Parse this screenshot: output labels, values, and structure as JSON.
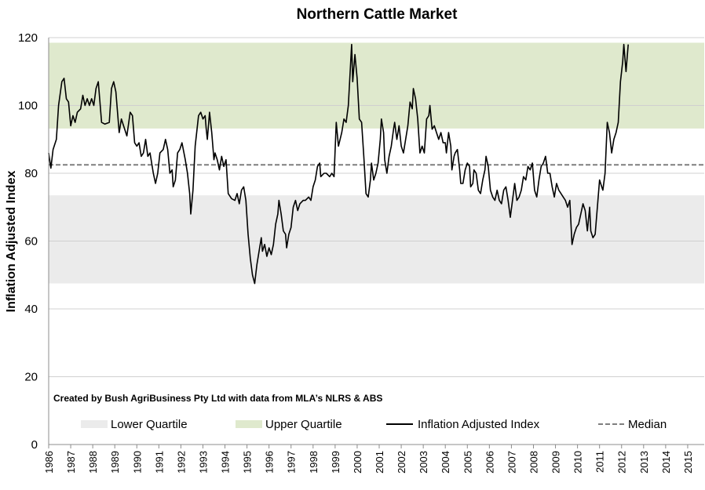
{
  "chart_data": {
    "type": "line",
    "title": "Northern Cattle Market",
    "ylabel": "Inflation Adjusted Index",
    "xlabel": "",
    "ylim": [
      0,
      120
    ],
    "yticks": [
      0,
      20,
      40,
      60,
      80,
      100,
      120
    ],
    "xlim": [
      1986,
      2015.75
    ],
    "xticks": [
      "1986",
      "1987",
      "1988",
      "1989",
      "1990",
      "1991",
      "1992",
      "1993",
      "1994",
      "1995",
      "1996",
      "1997",
      "1998",
      "1999",
      "2000",
      "2001",
      "2002",
      "2003",
      "2004",
      "2005",
      "2006",
      "2007",
      "2008",
      "2009",
      "2010",
      "2011",
      "2012",
      "2013",
      "2014",
      "2015"
    ],
    "grid": "horizontal",
    "legend_position": "bottom",
    "annotation": "Created by Bush AgriBusiness Pty Ltd with data from MLA’s NLRS & ABS",
    "bands": [
      {
        "name": "Lower Quartile",
        "range": [
          47.5,
          73.5
        ],
        "color": "#ebebeb"
      },
      {
        "name": "Upper Quartile",
        "range": [
          93.2,
          118.5
        ],
        "color": "#dfe9cd"
      }
    ],
    "median": {
      "name": "Median",
      "value": 82.5,
      "color": "#7f7f7f"
    },
    "series": [
      {
        "name": "Inflation Adjusted Index",
        "color": "#000000",
        "points": [
          [
            1986.0,
            86
          ],
          [
            1986.1,
            81.5
          ],
          [
            1986.2,
            87
          ],
          [
            1986.35,
            90
          ],
          [
            1986.45,
            100
          ],
          [
            1986.6,
            107
          ],
          [
            1986.7,
            108
          ],
          [
            1986.8,
            102
          ],
          [
            1986.9,
            101
          ],
          [
            1987.0,
            94
          ],
          [
            1987.1,
            97
          ],
          [
            1987.2,
            95
          ],
          [
            1987.3,
            98
          ],
          [
            1987.45,
            99
          ],
          [
            1987.55,
            103
          ],
          [
            1987.65,
            100
          ],
          [
            1987.75,
            102
          ],
          [
            1987.85,
            100
          ],
          [
            1987.95,
            102
          ],
          [
            1988.05,
            100
          ],
          [
            1988.15,
            105
          ],
          [
            1988.25,
            107
          ],
          [
            1988.4,
            95
          ],
          [
            1988.55,
            94.5
          ],
          [
            1988.75,
            95
          ],
          [
            1988.85,
            105
          ],
          [
            1988.95,
            107
          ],
          [
            1989.05,
            104
          ],
          [
            1989.2,
            92
          ],
          [
            1989.3,
            96
          ],
          [
            1989.45,
            93
          ],
          [
            1989.55,
            91
          ],
          [
            1989.7,
            98
          ],
          [
            1989.8,
            97
          ],
          [
            1989.9,
            89
          ],
          [
            1990.0,
            88
          ],
          [
            1990.1,
            89
          ],
          [
            1990.2,
            85
          ],
          [
            1990.3,
            86
          ],
          [
            1990.4,
            90
          ],
          [
            1990.5,
            85
          ],
          [
            1990.6,
            86
          ],
          [
            1990.75,
            80
          ],
          [
            1990.85,
            77
          ],
          [
            1990.95,
            80
          ],
          [
            1991.05,
            86
          ],
          [
            1991.2,
            87
          ],
          [
            1991.3,
            90
          ],
          [
            1991.4,
            87
          ],
          [
            1991.5,
            80
          ],
          [
            1991.6,
            81
          ],
          [
            1991.65,
            76
          ],
          [
            1991.75,
            78
          ],
          [
            1991.85,
            86
          ],
          [
            1991.95,
            87
          ],
          [
            1992.05,
            89
          ],
          [
            1992.2,
            84
          ],
          [
            1992.3,
            80
          ],
          [
            1992.4,
            74
          ],
          [
            1992.45,
            68
          ],
          [
            1992.55,
            75
          ],
          [
            1992.65,
            88
          ],
          [
            1992.8,
            97
          ],
          [
            1992.9,
            98
          ],
          [
            1993.0,
            96
          ],
          [
            1993.1,
            97
          ],
          [
            1993.15,
            93
          ],
          [
            1993.2,
            90
          ],
          [
            1993.3,
            98
          ],
          [
            1993.4,
            92
          ],
          [
            1993.5,
            84
          ],
          [
            1993.55,
            86
          ],
          [
            1993.65,
            84
          ],
          [
            1993.75,
            81
          ],
          [
            1993.85,
            85
          ],
          [
            1993.95,
            82
          ],
          [
            1994.05,
            84
          ],
          [
            1994.15,
            74
          ],
          [
            1994.3,
            72.5
          ],
          [
            1994.45,
            72
          ],
          [
            1994.55,
            74
          ],
          [
            1994.65,
            71
          ],
          [
            1994.75,
            75
          ],
          [
            1994.85,
            76
          ],
          [
            1994.95,
            72
          ],
          [
            1995.05,
            62
          ],
          [
            1995.15,
            55
          ],
          [
            1995.25,
            50
          ],
          [
            1995.35,
            47.5
          ],
          [
            1995.45,
            53
          ],
          [
            1995.55,
            57
          ],
          [
            1995.65,
            61
          ],
          [
            1995.7,
            57
          ],
          [
            1995.8,
            59
          ],
          [
            1995.9,
            55.5
          ],
          [
            1996.0,
            58
          ],
          [
            1996.1,
            56
          ],
          [
            1996.2,
            59
          ],
          [
            1996.3,
            65
          ],
          [
            1996.4,
            68
          ],
          [
            1996.45,
            72
          ],
          [
            1996.55,
            68
          ],
          [
            1996.65,
            63
          ],
          [
            1996.75,
            62
          ],
          [
            1996.8,
            58
          ],
          [
            1996.9,
            62
          ],
          [
            1997.0,
            64
          ],
          [
            1997.1,
            70
          ],
          [
            1997.2,
            72
          ],
          [
            1997.3,
            69
          ],
          [
            1997.4,
            71
          ],
          [
            1997.55,
            72
          ],
          [
            1997.65,
            72
          ],
          [
            1997.8,
            73
          ],
          [
            1997.9,
            72
          ],
          [
            1998.0,
            76
          ],
          [
            1998.1,
            78
          ],
          [
            1998.2,
            82
          ],
          [
            1998.3,
            83
          ],
          [
            1998.35,
            79
          ],
          [
            1998.5,
            80
          ],
          [
            1998.6,
            80
          ],
          [
            1998.75,
            79
          ],
          [
            1998.85,
            80
          ],
          [
            1998.95,
            79
          ],
          [
            1999.05,
            95
          ],
          [
            1999.15,
            88
          ],
          [
            1999.3,
            92
          ],
          [
            1999.4,
            96
          ],
          [
            1999.5,
            95
          ],
          [
            1999.6,
            100
          ],
          [
            1999.7,
            112
          ],
          [
            1999.75,
            118
          ],
          [
            1999.8,
            107
          ],
          [
            1999.9,
            115
          ],
          [
            2000.0,
            108
          ],
          [
            2000.1,
            96
          ],
          [
            2000.2,
            95
          ],
          [
            2000.3,
            85
          ],
          [
            2000.4,
            74
          ],
          [
            2000.5,
            73
          ],
          [
            2000.6,
            78
          ],
          [
            2000.65,
            83
          ],
          [
            2000.75,
            78
          ],
          [
            2000.85,
            80
          ],
          [
            2000.95,
            83
          ],
          [
            2001.05,
            90
          ],
          [
            2001.1,
            96
          ],
          [
            2001.2,
            92
          ],
          [
            2001.25,
            84
          ],
          [
            2001.35,
            80
          ],
          [
            2001.45,
            85
          ],
          [
            2001.55,
            88
          ],
          [
            2001.65,
            93
          ],
          [
            2001.7,
            95
          ],
          [
            2001.8,
            90
          ],
          [
            2001.9,
            94
          ],
          [
            2002.0,
            88
          ],
          [
            2002.1,
            86
          ],
          [
            2002.2,
            90
          ],
          [
            2002.3,
            94
          ],
          [
            2002.4,
            101
          ],
          [
            2002.5,
            99
          ],
          [
            2002.55,
            105
          ],
          [
            2002.65,
            102
          ],
          [
            2002.75,
            96
          ],
          [
            2002.85,
            86
          ],
          [
            2002.95,
            88
          ],
          [
            2003.05,
            86
          ],
          [
            2003.15,
            96
          ],
          [
            2003.25,
            97
          ],
          [
            2003.3,
            100
          ],
          [
            2003.4,
            93
          ],
          [
            2003.5,
            94
          ],
          [
            2003.6,
            92
          ],
          [
            2003.7,
            90
          ],
          [
            2003.8,
            92
          ],
          [
            2003.9,
            89
          ],
          [
            2004.0,
            89
          ],
          [
            2004.05,
            86
          ],
          [
            2004.15,
            92
          ],
          [
            2004.25,
            88
          ],
          [
            2004.3,
            81
          ],
          [
            2004.4,
            85
          ],
          [
            2004.45,
            86
          ],
          [
            2004.55,
            87
          ],
          [
            2004.65,
            81
          ],
          [
            2004.7,
            77
          ],
          [
            2004.8,
            77
          ],
          [
            2004.9,
            81
          ],
          [
            2005.0,
            83
          ],
          [
            2005.1,
            82
          ],
          [
            2005.15,
            76
          ],
          [
            2005.25,
            77
          ],
          [
            2005.3,
            81
          ],
          [
            2005.4,
            80
          ],
          [
            2005.5,
            75
          ],
          [
            2005.6,
            74
          ],
          [
            2005.7,
            78
          ],
          [
            2005.8,
            81
          ],
          [
            2005.85,
            85
          ],
          [
            2005.95,
            82
          ],
          [
            2006.05,
            75
          ],
          [
            2006.15,
            73
          ],
          [
            2006.25,
            72
          ],
          [
            2006.35,
            75
          ],
          [
            2006.45,
            72
          ],
          [
            2006.55,
            71
          ],
          [
            2006.65,
            75
          ],
          [
            2006.75,
            76
          ],
          [
            2006.85,
            72
          ],
          [
            2006.95,
            67
          ],
          [
            2007.05,
            72
          ],
          [
            2007.15,
            77
          ],
          [
            2007.25,
            72
          ],
          [
            2007.35,
            73
          ],
          [
            2007.45,
            75
          ],
          [
            2007.55,
            79
          ],
          [
            2007.65,
            78
          ],
          [
            2007.75,
            82
          ],
          [
            2007.85,
            81
          ],
          [
            2007.95,
            83
          ],
          [
            2008.05,
            75
          ],
          [
            2008.15,
            73
          ],
          [
            2008.25,
            78
          ],
          [
            2008.35,
            82
          ],
          [
            2008.45,
            83
          ],
          [
            2008.55,
            85
          ],
          [
            2008.65,
            80
          ],
          [
            2008.75,
            80
          ],
          [
            2008.85,
            76
          ],
          [
            2008.95,
            73
          ],
          [
            2009.05,
            77
          ],
          [
            2009.15,
            75
          ],
          [
            2009.25,
            74
          ],
          [
            2009.35,
            73
          ],
          [
            2009.45,
            72
          ],
          [
            2009.55,
            70
          ],
          [
            2009.65,
            72
          ],
          [
            2009.75,
            59
          ],
          [
            2009.85,
            62
          ],
          [
            2009.95,
            64
          ],
          [
            2010.05,
            65
          ],
          [
            2010.15,
            68
          ],
          [
            2010.25,
            71
          ],
          [
            2010.35,
            69
          ],
          [
            2010.45,
            63
          ],
          [
            2010.55,
            70
          ],
          [
            2010.6,
            63
          ],
          [
            2010.7,
            61
          ],
          [
            2010.8,
            62
          ],
          [
            2010.9,
            70
          ],
          [
            2011.0,
            78
          ],
          [
            2011.05,
            77
          ],
          [
            2011.15,
            75
          ],
          [
            2011.25,
            80
          ],
          [
            2011.35,
            95
          ],
          [
            2011.45,
            92
          ],
          [
            2011.55,
            86
          ],
          [
            2011.65,
            90
          ],
          [
            2011.75,
            92
          ],
          [
            2011.85,
            95
          ],
          [
            2011.95,
            107
          ],
          [
            2012.05,
            113
          ],
          [
            2012.1,
            118
          ],
          [
            2012.2,
            110
          ],
          [
            2012.3,
            118
          ]
        ]
      }
    ]
  }
}
